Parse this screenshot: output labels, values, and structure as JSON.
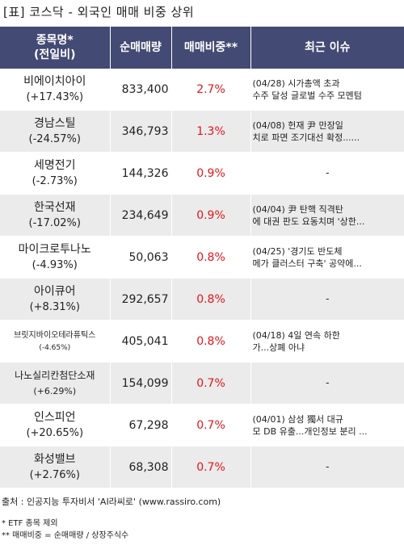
{
  "title": "[표] 코스닥 - 외국인 매매 비중 상위",
  "columns": {
    "name_line1": "종목명*",
    "name_line2": "(전일비)",
    "volume": "순매매량",
    "ratio": "매매비중**",
    "issue": "최근 이슈"
  },
  "rows": [
    {
      "name": "비에이치아이",
      "change": "(+17.43%)",
      "volume": "833,400",
      "ratio": "2.7%",
      "issue1": "(04/28) 시가총액 초과",
      "issue2": "수주 달성 글로벌 수주 모멘텀"
    },
    {
      "name": "경남스틸",
      "change": "(-24.57%)",
      "volume": "346,793",
      "ratio": "1.3%",
      "issue1": "(04/08) 헌재 尹 만장일",
      "issue2": "치로 파면 조기대선 확정......"
    },
    {
      "name": "세명전기",
      "change": "(-2.73%)",
      "volume": "144,326",
      "ratio": "0.9%",
      "issue1": "-",
      "issue2": ""
    },
    {
      "name": "한국선재",
      "change": "(-17.02%)",
      "volume": "234,649",
      "ratio": "0.9%",
      "issue1": "(04/04) 尹 탄핵 직격탄",
      "issue2": "에 대권 판도 요동치며 '상한..."
    },
    {
      "name": "마이크로투나노",
      "change": "(-4.93%)",
      "volume": "50,063",
      "ratio": "0.8%",
      "issue1": "(04/25) '경기도 반도체",
      "issue2": " 메가 클러스터 구축' 공약에..."
    },
    {
      "name": "아이큐어",
      "change": "(+8.31%)",
      "volume": "292,657",
      "ratio": "0.8%",
      "issue1": "-",
      "issue2": ""
    },
    {
      "name": "브릿지바이오테라퓨틱스",
      "change": "(-4.65%)",
      "volume": "405,041",
      "ratio": "0.8%",
      "issue1": "(04/18) 4일 연속 하한",
      "issue2": "가...상폐 아냐"
    },
    {
      "name": "나노실리칸첨단소재",
      "change": "(+6.29%)",
      "volume": "154,099",
      "ratio": "0.7%",
      "issue1": "-",
      "issue2": ""
    },
    {
      "name": "인스피언",
      "change": "(+20.65%)",
      "volume": "67,298",
      "ratio": "0.7%",
      "issue1": "(04/01) 삼성 獨서 대규",
      "issue2": "모 DB 유출...개인정보 분리 ..."
    },
    {
      "name": "화성밸브",
      "change": "(+2.76%)",
      "volume": "68,308",
      "ratio": "0.7%",
      "issue1": "-",
      "issue2": ""
    }
  ],
  "footer": {
    "source": "출처 : 인공지능 투자비서 'AI라씨로' (www.rassiro.com)",
    "note1": "* ETF 종목 제외",
    "note2": "** 매매비중 = 순매매량 / 상장주식수"
  },
  "colors": {
    "header_bg": "#434a73",
    "ratio_text": "#e0161d",
    "stripe": "#ebebeb"
  }
}
